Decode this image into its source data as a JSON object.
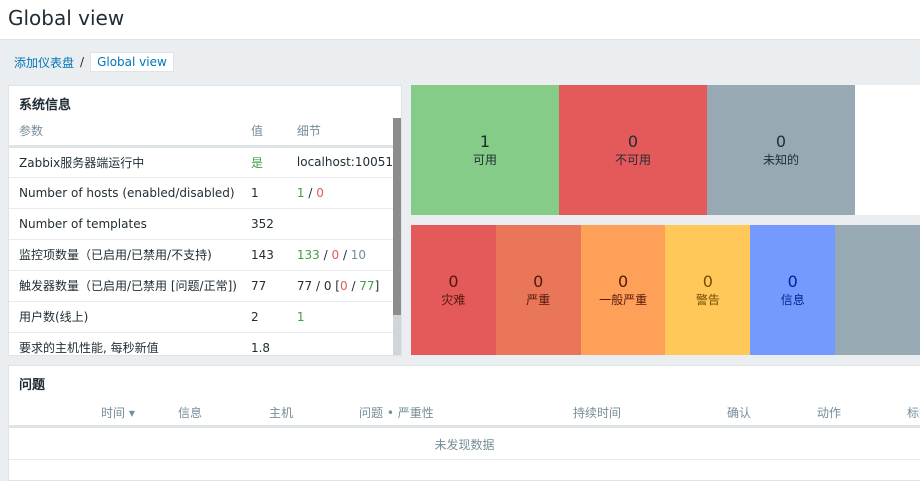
{
  "header": {
    "title": "Global view"
  },
  "breadcrumb": {
    "parent": "添加仪表盘",
    "separator": "/",
    "current": "Global view"
  },
  "system_info": {
    "title": "系统信息",
    "columns": [
      "参数",
      "值",
      "细节"
    ],
    "rows": [
      {
        "param": "Zabbix服务器端运行中",
        "value": "是",
        "detail": "localhost:10051"
      },
      {
        "param": "Number of hosts (enabled/disabled)",
        "value": "1",
        "d1": "1",
        "d2": "0"
      },
      {
        "param": "Number of templates",
        "value": "352"
      },
      {
        "param": "监控项数量（已启用/已禁用/不支持)",
        "value": "143",
        "d1": "133",
        "d2": "0",
        "d3": "10"
      },
      {
        "param": "触发器数量（已启用/已禁用 [问题/正常])",
        "value": "77",
        "d_pre": "77 / 0 [",
        "d1": "0",
        "d2": "77"
      },
      {
        "param": "用户数(线上)",
        "value": "2",
        "d1": "1"
      },
      {
        "param": "要求的主机性能, 每秒新值",
        "value": "1.8"
      }
    ]
  },
  "host_availability": [
    {
      "count": "1",
      "label": "可用",
      "color": "#86cc89"
    },
    {
      "count": "0",
      "label": "不可用",
      "color": "#e45959"
    },
    {
      "count": "0",
      "label": "未知的",
      "color": "#97aab3"
    }
  ],
  "problems_by_severity": [
    {
      "count": "0",
      "label": "灾难",
      "color": "#e45959",
      "text": "#52190b"
    },
    {
      "count": "0",
      "label": "严重",
      "color": "#e97659",
      "text": "#52190b"
    },
    {
      "count": "0",
      "label": "一般严重",
      "color": "#ffa059",
      "text": "#52190b"
    },
    {
      "count": "0",
      "label": "警告",
      "color": "#ffc859",
      "text": "#734d00"
    },
    {
      "count": "0",
      "label": "信息",
      "color": "#7499ff",
      "text": "#00268e"
    },
    {
      "count": "",
      "label": "",
      "color": "#97aab3",
      "text": "#1f2c33"
    }
  ],
  "problems": {
    "title": "问题",
    "columns": [
      "时间 ▾",
      "信息",
      "主机",
      "问题 • 严重性",
      "持续时间",
      "确认",
      "动作",
      "标签"
    ],
    "empty": "未发现数据"
  }
}
